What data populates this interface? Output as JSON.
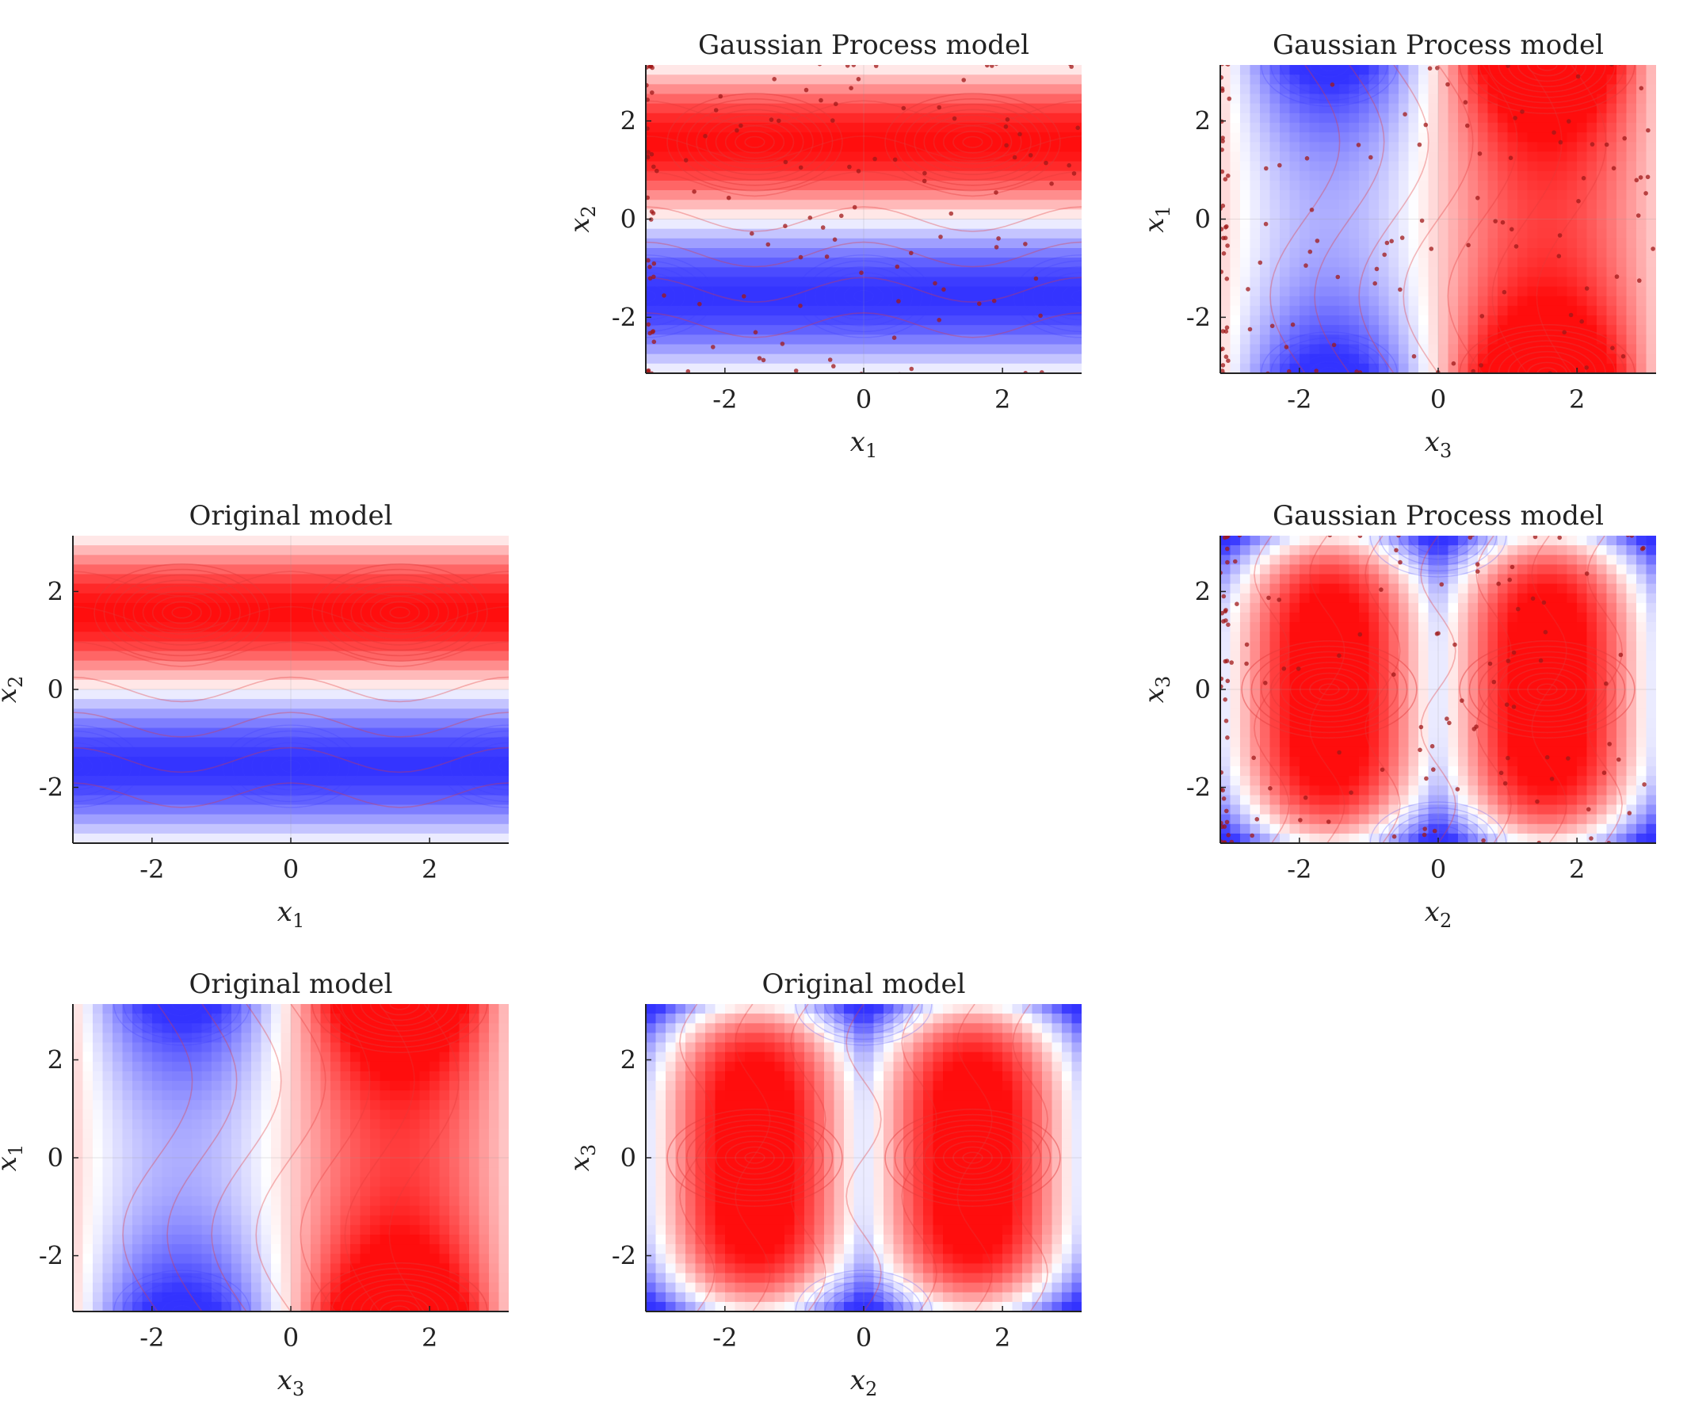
{
  "chart_data": [
    {
      "id": "gp-x1-x2",
      "type": "contour-phase-portrait",
      "title": "Gaussian Process model",
      "xlabel": "x",
      "xlabel_sub": "1",
      "ylabel": "x",
      "ylabel_sub": "2",
      "xlim": [
        -3.14,
        3.14
      ],
      "ylim": [
        -3.14,
        3.14
      ],
      "xticks": [
        -2,
        0,
        2
      ],
      "yticks": [
        -2,
        0,
        2
      ],
      "xtick_labels": [
        "-2",
        "0",
        "2"
      ],
      "ytick_labels": [
        "-2",
        "0",
        "2"
      ],
      "field": "x2",
      "training_points": true,
      "red_centers": [
        [
          -1.57,
          1.57
        ],
        [
          1.57,
          1.57
        ]
      ],
      "blue_centers": [
        [
          -3.14,
          -1.57
        ],
        [
          0,
          -1.57
        ],
        [
          3.14,
          -1.57
        ]
      ]
    },
    {
      "id": "gp-x3-x1",
      "type": "contour-phase-portrait",
      "title": "Gaussian Process model",
      "xlabel": "x",
      "xlabel_sub": "3",
      "ylabel": "x",
      "ylabel_sub": "1",
      "xlim": [
        -3.14,
        3.14
      ],
      "ylim": [
        -3.14,
        3.14
      ],
      "xticks": [
        -2,
        0,
        2
      ],
      "yticks": [
        -2,
        0,
        2
      ],
      "xtick_labels": [
        "-2",
        "0",
        "2"
      ],
      "ytick_labels": [
        "-2",
        "0",
        "2"
      ],
      "field": "x3x1",
      "training_points": true,
      "red_centers": [
        [
          1.57,
          3.14
        ],
        [
          1.57,
          -3.14
        ]
      ],
      "blue_centers": [
        [
          -1.57,
          3.14
        ],
        [
          -1.57,
          -3.14
        ]
      ]
    },
    {
      "id": "orig-x1-x2",
      "type": "contour-phase-portrait",
      "title": "Original model",
      "xlabel": "x",
      "xlabel_sub": "1",
      "ylabel": "x",
      "ylabel_sub": "2",
      "xlim": [
        -3.14,
        3.14
      ],
      "ylim": [
        -3.14,
        3.14
      ],
      "xticks": [
        -2,
        0,
        2
      ],
      "yticks": [
        -2,
        0,
        2
      ],
      "xtick_labels": [
        "-2",
        "0",
        "2"
      ],
      "ytick_labels": [
        "-2",
        "0",
        "2"
      ],
      "field": "x2",
      "training_points": false,
      "red_centers": [
        [
          -1.57,
          1.57
        ],
        [
          1.57,
          1.57
        ]
      ],
      "blue_centers": [
        [
          -3.14,
          -1.57
        ],
        [
          0,
          -1.57
        ],
        [
          3.14,
          -1.57
        ]
      ]
    },
    {
      "id": "gp-x2-x3",
      "type": "contour-phase-portrait",
      "title": "Gaussian Process model",
      "xlabel": "x",
      "xlabel_sub": "2",
      "ylabel": "x",
      "ylabel_sub": "3",
      "xlim": [
        -3.14,
        3.14
      ],
      "ylim": [
        -3.14,
        3.14
      ],
      "xticks": [
        -2,
        0,
        2
      ],
      "yticks": [
        -2,
        0,
        2
      ],
      "xtick_labels": [
        "-2",
        "0",
        "2"
      ],
      "ytick_labels": [
        "-2",
        "0",
        "2"
      ],
      "field": "x2x3",
      "training_points": true,
      "red_centers": [
        [
          -1.57,
          0
        ],
        [
          1.57,
          0
        ]
      ],
      "blue_centers": [
        [
          0,
          3.14
        ],
        [
          0,
          -3.14
        ]
      ]
    },
    {
      "id": "orig-x3-x1",
      "type": "contour-phase-portrait",
      "title": "Original model",
      "xlabel": "x",
      "xlabel_sub": "3",
      "ylabel": "x",
      "ylabel_sub": "1",
      "xlim": [
        -3.14,
        3.14
      ],
      "ylim": [
        -3.14,
        3.14
      ],
      "xticks": [
        -2,
        0,
        2
      ],
      "yticks": [
        -2,
        0,
        2
      ],
      "xtick_labels": [
        "-2",
        "0",
        "2"
      ],
      "ytick_labels": [
        "-2",
        "0",
        "2"
      ],
      "field": "x3x1",
      "training_points": false,
      "red_centers": [
        [
          1.57,
          3.14
        ],
        [
          1.57,
          -3.14
        ]
      ],
      "blue_centers": [
        [
          -1.57,
          3.14
        ],
        [
          -1.57,
          -3.14
        ]
      ]
    },
    {
      "id": "orig-x2-x3",
      "type": "contour-phase-portrait",
      "title": "Original model",
      "xlabel": "x",
      "xlabel_sub": "2",
      "ylabel": "x",
      "ylabel_sub": "3",
      "xlim": [
        -3.14,
        3.14
      ],
      "ylim": [
        -3.14,
        3.14
      ],
      "xticks": [
        -2,
        0,
        2
      ],
      "yticks": [
        -2,
        0,
        2
      ],
      "xtick_labels": [
        "-2",
        "0",
        "2"
      ],
      "ytick_labels": [
        "-2",
        "0",
        "2"
      ],
      "field": "x2x3",
      "training_points": false,
      "red_centers": [
        [
          -1.57,
          0
        ],
        [
          1.57,
          0
        ]
      ],
      "blue_centers": [
        [
          0,
          3.14
        ],
        [
          0,
          -3.14
        ]
      ]
    }
  ],
  "colors": {
    "red": "#ff0000",
    "blue": "#3b3bff",
    "white": "#ffffff",
    "trajectory": "#e23a3a",
    "point": "#a01818",
    "axis": "#222222"
  }
}
